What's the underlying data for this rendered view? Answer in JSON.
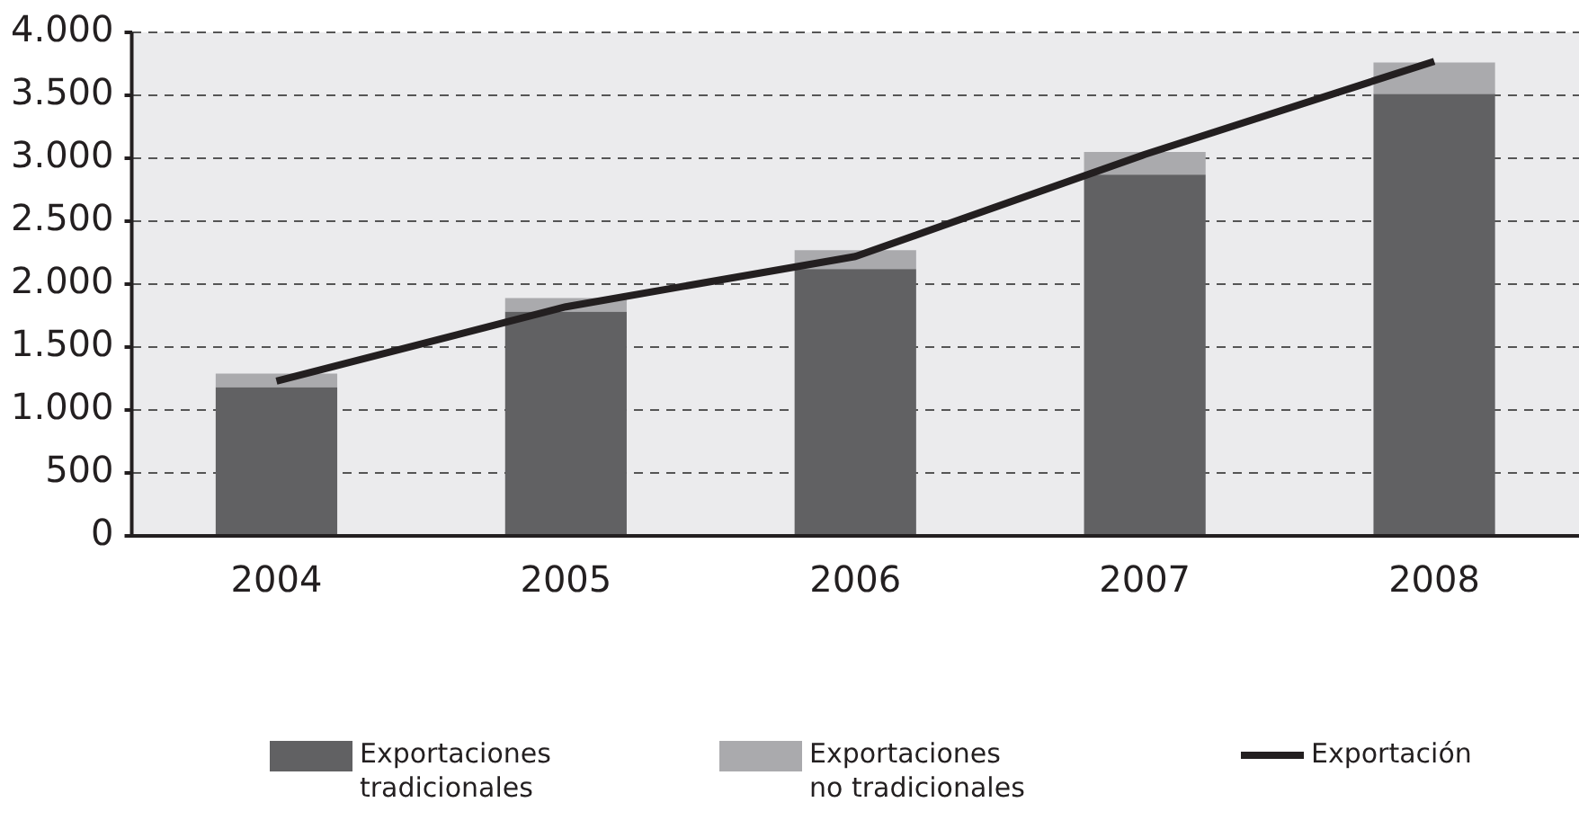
{
  "chart_data": {
    "type": "bar",
    "stacked": true,
    "categories": [
      "2004",
      "2005",
      "2006",
      "2007",
      "2008"
    ],
    "series": [
      {
        "name": "Exportaciones tradicionales",
        "color": "#616163",
        "values": [
          1180,
          1780,
          2120,
          2870,
          3510
        ]
      },
      {
        "name": "Exportaciones no tradicionales",
        "color": "#aaaaad",
        "values": [
          110,
          110,
          150,
          180,
          250
        ]
      },
      {
        "name": "Exportación",
        "type": "line",
        "color": "#231f20",
        "values": [
          1230,
          1820,
          2220,
          3030,
          3770
        ]
      }
    ],
    "ylim": [
      0,
      4000
    ],
    "yticks": [
      0,
      500,
      {
        "value": 1000,
        "label": "1.000"
      },
      {
        "value": 1500,
        "label": "1.500"
      },
      {
        "value": 2000,
        "label": "2.000"
      },
      {
        "value": 2500,
        "label": "2.500"
      },
      {
        "value": 3000,
        "label": "3.000"
      },
      {
        "value": 3500,
        "label": "3.500"
      },
      {
        "value": 4000,
        "label": "4.000"
      }
    ],
    "grid": "y",
    "marker": "none",
    "legend": "bottom"
  }
}
